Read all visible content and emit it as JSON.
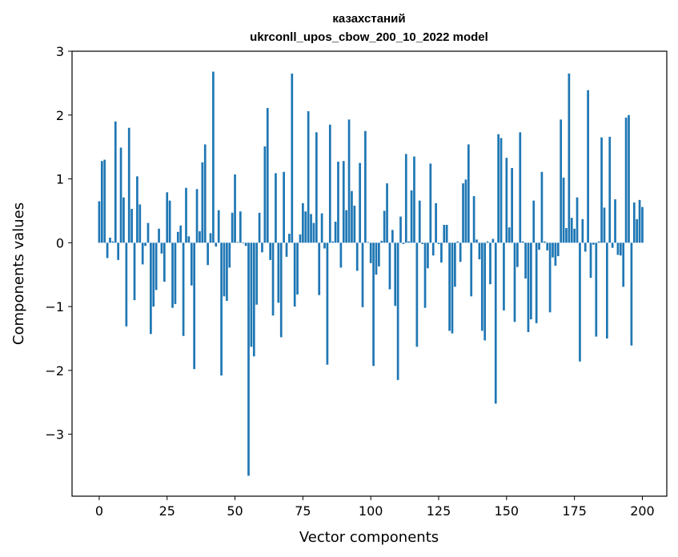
{
  "chart_data": {
    "type": "bar",
    "title_line1": "казахстаний",
    "title_line2": "ukrconll_upos_cbow_200_10_2022 model",
    "xlabel": "Vector components",
    "ylabel": "Components values",
    "xlim": [
      -10,
      209
    ],
    "ylim": [
      -3.97,
      3.0
    ],
    "xticks": [
      0,
      25,
      50,
      75,
      100,
      125,
      150,
      175,
      200
    ],
    "yticks": [
      -3,
      -2,
      -1,
      0,
      1,
      2,
      3
    ],
    "ytick_labels": [
      "−3",
      "−2",
      "−1",
      "0",
      "1",
      "2",
      "3"
    ],
    "bar_color": "#1f77b4",
    "grid": false,
    "values": [
      0.65,
      1.28,
      1.3,
      -0.24,
      0.08,
      0.02,
      1.9,
      -0.27,
      1.49,
      0.71,
      -1.31,
      1.8,
      0.53,
      -0.9,
      1.04,
      0.6,
      -0.34,
      -0.05,
      0.31,
      -1.43,
      -1.0,
      -0.74,
      0.22,
      -0.17,
      -0.61,
      0.79,
      0.66,
      -1.02,
      -0.96,
      0.17,
      0.27,
      -1.46,
      0.86,
      0.1,
      -0.67,
      -1.98,
      0.84,
      0.18,
      1.26,
      1.54,
      -0.35,
      0.15,
      2.68,
      -0.06,
      0.51,
      -2.08,
      -0.84,
      -0.91,
      -0.39,
      0.47,
      1.07,
      0.01,
      0.49,
      -0.01,
      -0.05,
      -3.65,
      -1.63,
      -1.78,
      -0.97,
      0.47,
      -0.15,
      1.51,
      2.11,
      -0.27,
      -1.14,
      1.09,
      -0.94,
      -1.48,
      1.11,
      -0.22,
      0.14,
      2.65,
      -1.0,
      -0.81,
      0.13,
      0.62,
      0.49,
      2.06,
      0.45,
      0.31,
      1.73,
      -0.82,
      0.46,
      -0.09,
      -1.91,
      1.85,
      0.02,
      0.33,
      1.27,
      -0.39,
      1.28,
      0.51,
      1.93,
      0.81,
      0.58,
      -0.44,
      1.25,
      -1.01,
      1.75,
      0.01,
      -0.32,
      -1.93,
      -0.5,
      -0.37,
      0.03,
      0.5,
      0.93,
      -0.73,
      0.2,
      -0.99,
      -2.15,
      0.41,
      -0.02,
      1.39,
      0.02,
      0.82,
      1.35,
      -1.63,
      0.66,
      -0.02,
      -1.02,
      -0.4,
      1.24,
      -0.2,
      0.62,
      -0.02,
      -0.31,
      0.28,
      0.28,
      -1.38,
      -1.42,
      -0.69,
      0.02,
      -0.3,
      0.93,
      0.99,
      1.54,
      -0.84,
      0.73,
      0.05,
      -0.26,
      -1.38,
      -1.53,
      0.02,
      -0.65,
      0.06,
      -2.52,
      1.7,
      1.64,
      -1.06,
      1.33,
      0.24,
      1.17,
      -1.24,
      -0.38,
      1.73,
      0.02,
      -0.56,
      -1.4,
      -1.2,
      0.66,
      -1.26,
      -0.11,
      1.11,
      0.02,
      -0.12,
      -1.09,
      -0.23,
      -0.36,
      -0.21,
      1.93,
      1.02,
      0.23,
      2.65,
      0.39,
      0.22,
      0.71,
      -1.86,
      0.37,
      -0.14,
      2.39,
      -0.55,
      -0.03,
      -1.47,
      0.02,
      1.65,
      0.55,
      -1.5,
      1.66,
      -0.08,
      0.68,
      -0.19,
      -0.2,
      -0.69,
      1.96,
      2.0,
      -1.61,
      0.63,
      0.37,
      0.67,
      0.56
    ]
  }
}
